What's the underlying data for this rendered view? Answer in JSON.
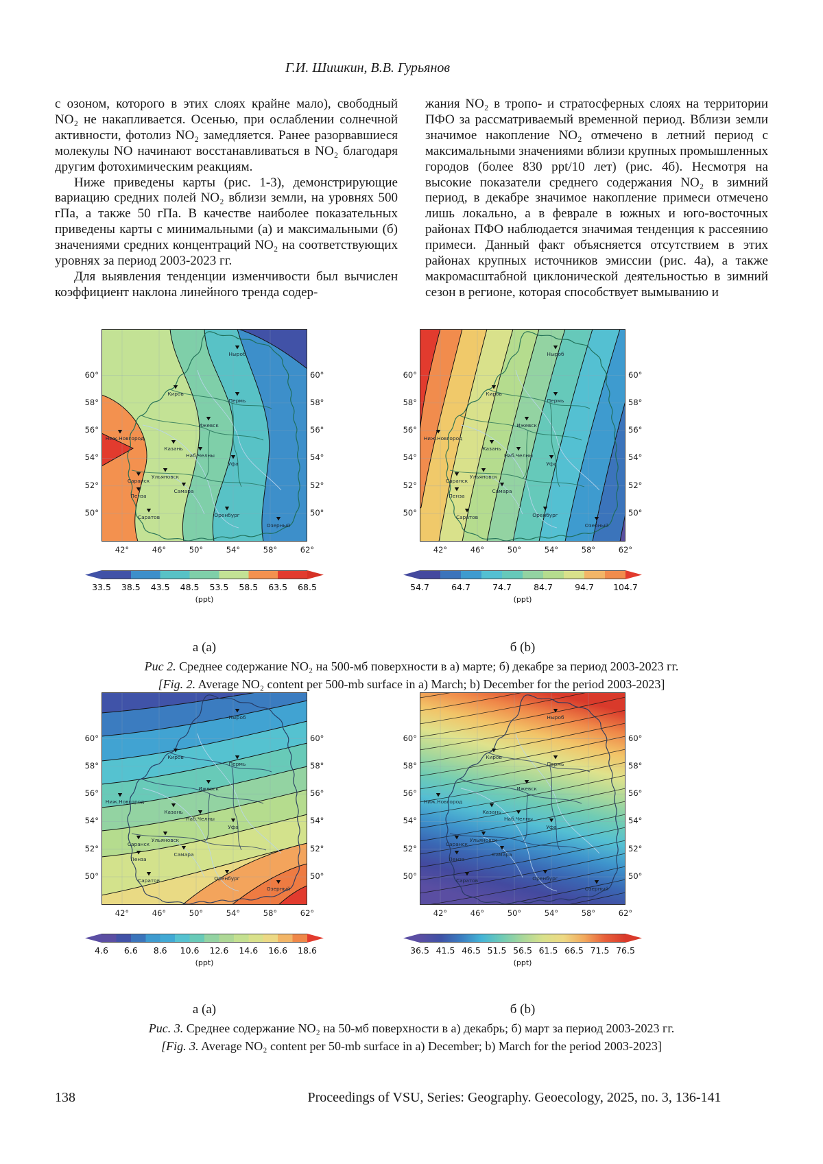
{
  "page": {
    "authors": "Г.И. Шишкин, В.В. Гурьянов",
    "footer": {
      "page_number": "138",
      "journal": "Proceedings of VSU, Series: Geography. Geoecology, 2025, no. 3, 136-141"
    }
  },
  "body": {
    "left": [
      {
        "indent": false,
        "text": "с озоном, которого в этих слоях крайне мало), свободный NO₂ не накапливается. Осенью, при ослаблении солнечной активности, фотолиз NO₂ замедляется. Ранее разорвавшиеся молекулы NO начинают восстанавливаться в NO₂ благодаря другим фотохимическим реакциям."
      },
      {
        "indent": true,
        "text": "Ниже приведены карты (рис. 1-3), демонстрирующие вариацию средних полей NO₂ вблизи земли, на уровнях 500 гПа, а также 50 гПа. В качестве наиболее показательных приведены карты с минимальными (а) и максимальными (б) значениями средних концентраций NO₂ на соответствующих уровнях за период 2003-2023 гг."
      },
      {
        "indent": true,
        "text": "Для выявления тенденции изменчивости был вычислен коэффициент наклона линейного тренда содер-"
      }
    ],
    "right": [
      {
        "indent": false,
        "text": "жания NO₂ в тропо- и стратосферных слоях на территории ПФО за рассматриваемый временной период. Вблизи земли значимое накопление NO₂ отмечено в летний период с максимальными значениями вблизи крупных промышленных городов (более 830 ppt/10 лет) (рис. 4б). Несмотря на высокие показатели среднего содержания NO₂ в зимний период, в декабре значимое накопление примеси отмечено лишь локально, а в феврале в южных и юго-восточных районах ПФО наблюдается значимая тенденция к рассеянию примеси. Данный факт объясняется отсутствием в этих районах крупных источников эмиссии (рис. 4а), а также макромасштабной циклонической деятельностью в зимний сезон в регионе, которая способствует вымыванию и"
      }
    ]
  },
  "map_common": {
    "lat_ticks": [
      "60°",
      "58°",
      "56°",
      "54°",
      "52°",
      "50°"
    ],
    "lon_ticks": [
      "42°",
      "46°",
      "50°",
      "54°",
      "58°",
      "62°"
    ],
    "unit": "(ppt)",
    "cities": [
      "Ныроб",
      "Киров",
      "Пермь",
      "Ижевск",
      "Ниж.Новгород",
      "Казань",
      "Наб.Челны",
      "Уфа",
      "Саранск",
      "Ульяновск",
      "Пенза",
      "Самара",
      "Саратов",
      "Оренбург",
      "Озерный"
    ]
  },
  "figures": [
    {
      "sub_a": "а (a)",
      "sub_b": "б (b)",
      "caption_ru_label": "Рис 2.",
      "caption_ru": " Среднее содержание NO₂ на 500-мб поверхности в а) марте; б) декабре за период 2003-2023 гг.",
      "caption_en_label": "[Fig. 2.",
      "caption_en": " Average NO₂ content per 500-mb surface in a) March; b) December for the period 2003-2023]",
      "maps": [
        {
          "colorbar": {
            "ticks": [
              "33.5",
              "38.5",
              "43.5",
              "48.5",
              "53.5",
              "58.5",
              "63.5",
              "68.5"
            ],
            "colors": [
              "#4152a7",
              "#3d8fca",
              "#58c2c6",
              "#7fcfa9",
              "#c3e295",
              "#f3914f",
              "#e23b2e"
            ],
            "arrow_left": "#4152a7",
            "arrow_right": "#d63226"
          }
        },
        {
          "colorbar": {
            "ticks": [
              "54.7",
              "64.7",
              "74.7",
              "84.7",
              "94.7",
              "104.7"
            ],
            "colors": [
              "#44499e",
              "#3b74bb",
              "#3e9bcf",
              "#54c0d2",
              "#66c9ba",
              "#93d3a2",
              "#b5dc8e",
              "#d9e18b",
              "#f2b567",
              "#f18c4d"
            ],
            "arrow_left": "#44499e",
            "arrow_right": "#e23b2e"
          }
        }
      ]
    },
    {
      "sub_a": "а (a)",
      "sub_b": "б (b)",
      "caption_ru_label": "Рис. 3.",
      "caption_ru": " Среднее содержание NO₂ на 50-мб поверхности в а) декабрь; б) март за период 2003-2023 гг.",
      "caption_en_label": "[Fig. 3.",
      "caption_en": " Average NO₂ content per 50-mb surface in a) December; b) March for the period 2003-2023]",
      "maps": [
        {
          "colorbar": {
            "ticks": [
              "4.6",
              "6.6",
              "8.6",
              "10.6",
              "12.6",
              "14.6",
              "16.6",
              "18.6"
            ],
            "colors": [
              "#5b4ea3",
              "#4152a7",
              "#3b74bb",
              "#3e9bcf",
              "#41a9d4",
              "#55c2d0",
              "#68cab8",
              "#93d3a2",
              "#aed896",
              "#c4e090",
              "#d9e18b",
              "#ecd985",
              "#f2b567",
              "#ef8748"
            ],
            "arrow_left": "#5b4ea3",
            "arrow_right": "#e23b2e"
          }
        },
        {
          "colorbar": {
            "ticks": [
              "36.5",
              "41.5",
              "46.5",
              "51.5",
              "56.5",
              "61.5",
              "66.5",
              "71.5",
              "76.5"
            ],
            "gradient_stops": [
              "#5b4ea3",
              "#3f51a5",
              "#3a7cc0",
              "#44b4d6",
              "#6fcbb5",
              "#a8d79a",
              "#d9e18b",
              "#eed983",
              "#f2a95d",
              "#e8603a",
              "#d93a2b"
            ],
            "arrow_left": "#5b4ea3",
            "arrow_right": "#d93a2b"
          }
        }
      ]
    }
  ]
}
